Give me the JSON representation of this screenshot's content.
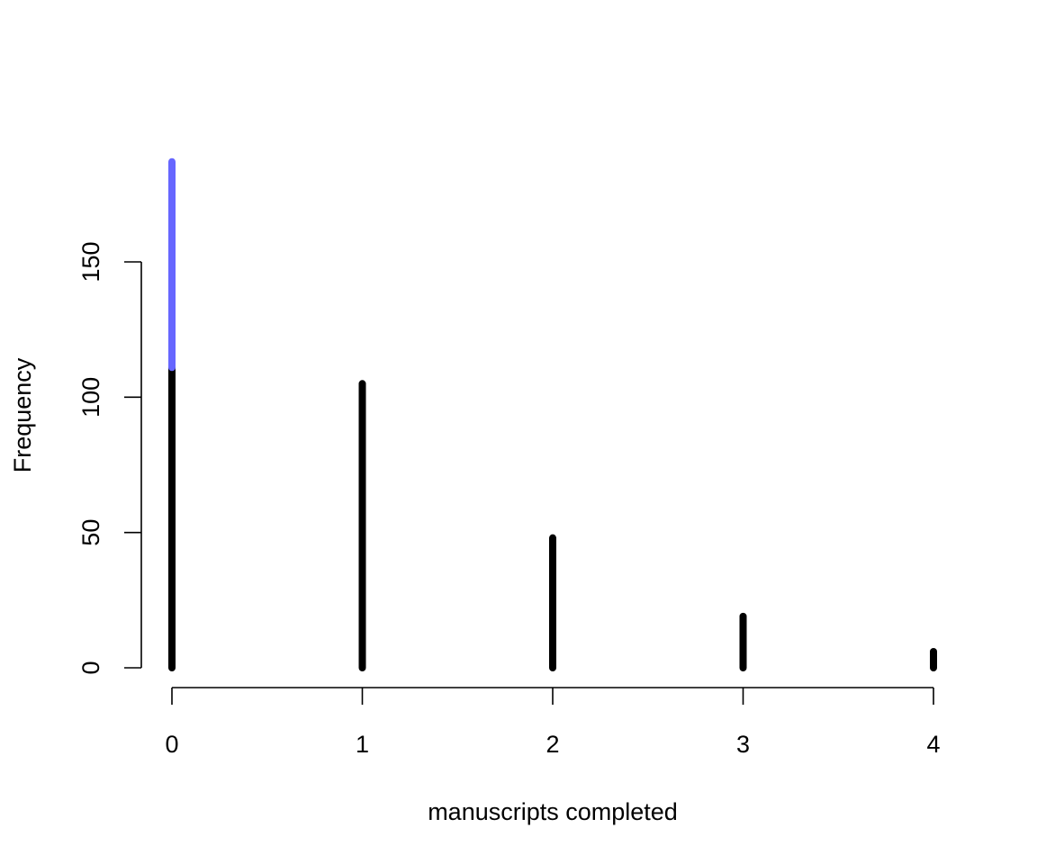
{
  "chart_data": {
    "type": "bar",
    "xlabel": "manuscripts completed",
    "ylabel": "Frequency",
    "x": [
      0,
      1,
      2,
      3,
      4
    ],
    "x_tick_labels": [
      "0",
      "1",
      "2",
      "3",
      "4"
    ],
    "y_ticks": [
      0,
      50,
      100,
      150
    ],
    "y_tick_labels": [
      "0",
      "50",
      "100",
      "150"
    ],
    "xlim": [
      0,
      4
    ],
    "ylim": [
      0,
      187
    ],
    "grid": false,
    "series": [
      {
        "color": "#000000",
        "values": [
          111,
          105,
          48,
          19,
          6
        ]
      },
      {
        "color": "#6666ff",
        "values": [
          76,
          0,
          0,
          0,
          0
        ]
      }
    ]
  }
}
